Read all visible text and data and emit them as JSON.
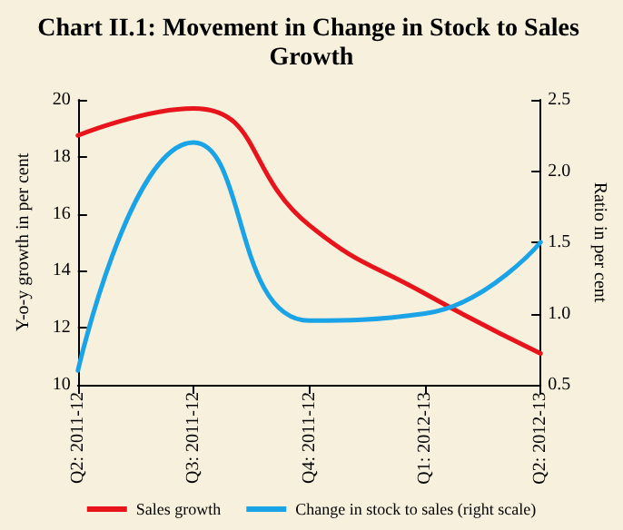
{
  "chart_data": {
    "type": "line",
    "title": "Chart II.1: Movement in Change in Stock to Sales Growth",
    "ylabel": "Y-o-y growth in per cent",
    "y2label": "Ratio in per cent",
    "categories": [
      "Q2: 2011-12",
      "Q3: 2011-12",
      "Q4: 2011-12",
      "Q1: 2012-13",
      "Q2: 2012-13"
    ],
    "series": [
      {
        "name": "Sales growth",
        "color": "#e8141c",
        "values": [
          18.75,
          19.7,
          15.6,
          13.2,
          11.1
        ]
      },
      {
        "name": "Change in stock to sales (right scale)",
        "color": "#1ba3e8",
        "axis": "y2",
        "values": [
          0.6,
          2.2,
          0.95,
          1.0,
          1.5
        ]
      }
    ],
    "ylim": [
      10,
      20
    ],
    "yticks": [
      10,
      12,
      14,
      16,
      18,
      20
    ],
    "y2lim": [
      0.5,
      2.5
    ],
    "y2ticks": [
      0.5,
      {
        "value": 1,
        "label": "1.0"
      },
      1.5,
      {
        "value": 2,
        "label": "2.0"
      },
      2.5
    ],
    "grid": false,
    "legend": "bottom",
    "marker": "none",
    "line_style": "solid"
  }
}
